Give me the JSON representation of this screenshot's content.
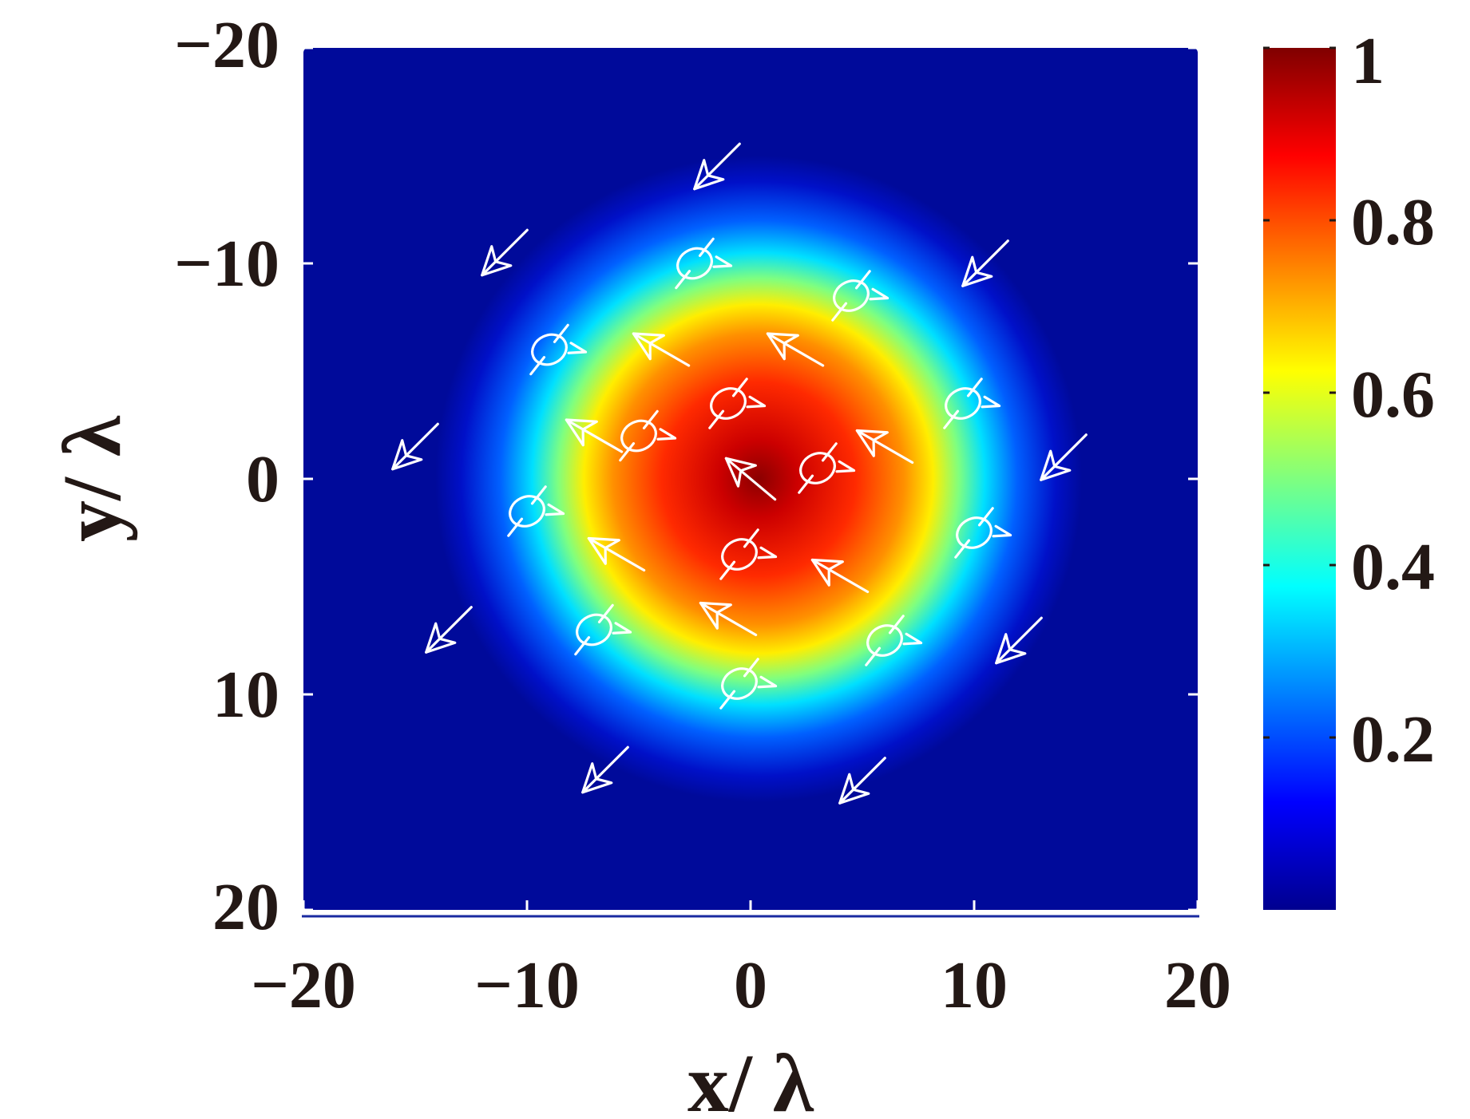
{
  "chart_data": {
    "type": "heatmap",
    "title": "",
    "xlabel": "x/ λ",
    "ylabel": "y/ λ",
    "xlim": [
      -20,
      20
    ],
    "ylim": [
      -20,
      20
    ],
    "y_direction": "reversed (top = -20, bottom = 20)",
    "x_ticks": [
      "−20",
      "−10",
      "0",
      "10",
      "20"
    ],
    "y_ticks": [
      "−20",
      "−10",
      "0",
      "10",
      "20"
    ],
    "x_tick_values": [
      -20,
      -10,
      0,
      10,
      20
    ],
    "y_tick_values": [
      -20,
      -10,
      0,
      10,
      20
    ],
    "colormap": "jet",
    "colorbar": {
      "range": [
        0,
        1
      ],
      "tick_values": [
        0.2,
        0.4,
        0.6,
        0.8,
        1
      ],
      "tick_labels": [
        "0.2",
        "0.4",
        "0.6",
        "0.8",
        "1"
      ]
    },
    "intensity": {
      "description": "Gaussian-like spot centered at origin",
      "center": [
        0.5,
        0
      ],
      "peak": 1,
      "falloff_radius": 9,
      "background": 0
    },
    "ring_radius_approx": 15,
    "polarization_markers": [
      {
        "x": 0,
        "y": 0,
        "kind": "arrow",
        "angle": -140
      },
      {
        "x": -5,
        "y": -2,
        "kind": "loop"
      },
      {
        "x": 3,
        "y": -0.5,
        "kind": "loop"
      },
      {
        "x": -1,
        "y": -3.5,
        "kind": "loop"
      },
      {
        "x": -0.5,
        "y": 3.5,
        "kind": "loop"
      },
      {
        "x": -7,
        "y": -2,
        "kind": "arrow",
        "angle": -150
      },
      {
        "x": 6,
        "y": -1.5,
        "kind": "arrow",
        "angle": -150
      },
      {
        "x": -4,
        "y": -6,
        "kind": "arrow",
        "angle": -150
      },
      {
        "x": 2,
        "y": -6,
        "kind": "arrow",
        "angle": -150
      },
      {
        "x": -6,
        "y": 3.5,
        "kind": "arrow",
        "angle": -150
      },
      {
        "x": 4,
        "y": 4.5,
        "kind": "arrow",
        "angle": -150
      },
      {
        "x": -1,
        "y": 6.5,
        "kind": "arrow",
        "angle": -150
      },
      {
        "x": -2.5,
        "y": -10,
        "kind": "loop"
      },
      {
        "x": 4.5,
        "y": -8.5,
        "kind": "loop"
      },
      {
        "x": -9,
        "y": -6,
        "kind": "loop"
      },
      {
        "x": 9.5,
        "y": -3.5,
        "kind": "loop"
      },
      {
        "x": -10,
        "y": 1.5,
        "kind": "loop"
      },
      {
        "x": 10,
        "y": 2.5,
        "kind": "loop"
      },
      {
        "x": -7,
        "y": 7,
        "kind": "loop"
      },
      {
        "x": 6,
        "y": 7.5,
        "kind": "loop"
      },
      {
        "x": -0.5,
        "y": 9.5,
        "kind": "loop"
      },
      {
        "x": -1.5,
        "y": -14.5,
        "kind": "arrow",
        "angle": 135
      },
      {
        "x": -11,
        "y": -10.5,
        "kind": "arrow",
        "angle": 135
      },
      {
        "x": 10.5,
        "y": -10,
        "kind": "arrow",
        "angle": 135
      },
      {
        "x": -15,
        "y": -1.5,
        "kind": "arrow",
        "angle": 135
      },
      {
        "x": 14,
        "y": -1,
        "kind": "arrow",
        "angle": 135
      },
      {
        "x": -13.5,
        "y": 7,
        "kind": "arrow",
        "angle": 135
      },
      {
        "x": 12,
        "y": 7.5,
        "kind": "arrow",
        "angle": 135
      },
      {
        "x": -6.5,
        "y": 13.5,
        "kind": "arrow",
        "angle": 135
      },
      {
        "x": 5,
        "y": 14,
        "kind": "arrow",
        "angle": 135
      }
    ]
  }
}
